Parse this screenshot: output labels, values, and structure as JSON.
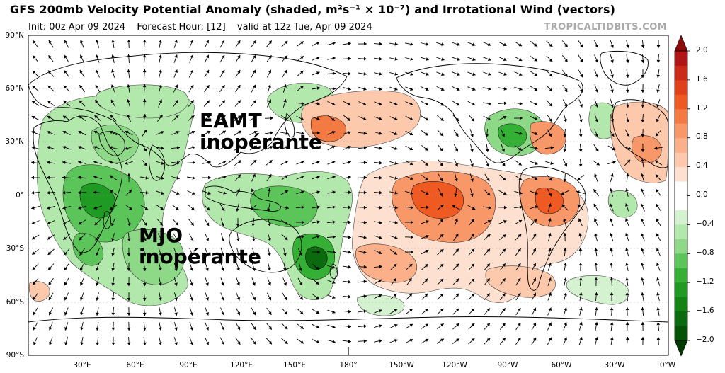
{
  "header": {
    "title": "GFS 200mb Velocity Potential Anomaly (shaded, m²s⁻¹ × 10⁻⁷) and Irrotational Wind (vectors)",
    "init": "Init: 00z Apr 09 2024",
    "forecast_hour": "Forecast Hour: [12]",
    "valid": "valid at 12z Tue, Apr 09 2024",
    "source": "TROPICALTIDBITS.COM"
  },
  "annotations": {
    "eamt": [
      "EAMT",
      "inopérante"
    ],
    "mjo": [
      "MJO",
      "inopérante"
    ]
  },
  "axes": {
    "lat_labels": [
      "90°N",
      "60°N",
      "30°N",
      "0°",
      "30°S",
      "60°S",
      "90°S"
    ],
    "lon_labels": [
      "30°E",
      "60°E",
      "90°E",
      "120°E",
      "150°E",
      "180°",
      "150°W",
      "120°W",
      "90°W",
      "60°W",
      "30°W",
      "0°W"
    ]
  },
  "colorbar": {
    "ticks": [
      "2.0",
      "1.6",
      "1.2",
      "0.8",
      "0.4",
      "0.0",
      "−0.4",
      "−0.8",
      "−1.2",
      "−1.6",
      "−2.0"
    ],
    "min": -2.0,
    "max": 2.0,
    "positive_colors": [
      "#fde0cf",
      "#fcc9ac",
      "#fbb08a",
      "#f89768",
      "#f47a44",
      "#ee5a22",
      "#e0401a",
      "#cc2a18",
      "#b01414",
      "#8c0a0a"
    ],
    "negative_colors": [
      "#d4f2cf",
      "#b2e8ab",
      "#8ed987",
      "#5cc55a",
      "#34b034",
      "#1f9a22",
      "#138414",
      "#0b6a0d",
      "#055207",
      "#023a04"
    ]
  },
  "colors": {
    "positive_accent": "#ee5a22",
    "negative_accent": "#34b034",
    "land_outline": "#000000",
    "background": "#ffffff"
  }
}
